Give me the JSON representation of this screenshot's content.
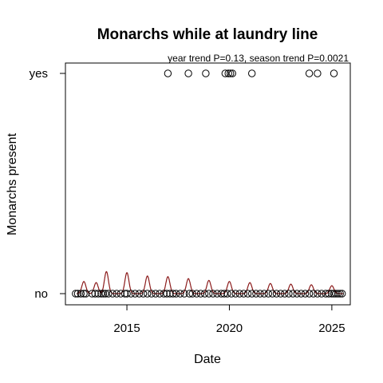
{
  "chart_data": {
    "type": "scatter",
    "title": "Monarchs while at laundry line",
    "subtitle": "year trend P=0.13, season trend P=0.0021",
    "xlabel": "Date",
    "ylabel": "Monarchs present",
    "xlim": [
      2012.0,
      2025.9
    ],
    "ylim": [
      0,
      1
    ],
    "x_ticks": [
      2015,
      2020,
      2025
    ],
    "y_ticks": [
      {
        "value": 0,
        "label": "no"
      },
      {
        "value": 1,
        "label": "yes"
      }
    ],
    "grid": false,
    "colors": {
      "points": "#000000",
      "trend": "#8b1a1a"
    },
    "series": [
      {
        "kind": "points",
        "points_yes": [
          2017.0,
          2018.0,
          2018.85,
          2019.8,
          2019.95,
          2020.05,
          2020.15,
          2021.1,
          2023.9,
          2024.3,
          2025.1
        ],
        "points_no": [
          2012.5,
          2012.6,
          2012.75,
          2012.9,
          2013.0,
          2013.3,
          2013.45,
          2013.6,
          2013.75,
          2013.85,
          2013.95,
          2014.1,
          2014.3,
          2014.5,
          2014.7,
          2014.9,
          2015.0,
          2015.2,
          2015.4,
          2015.6,
          2015.8,
          2016.0,
          2016.2,
          2016.4,
          2016.6,
          2016.8,
          2016.95,
          2017.1,
          2017.25,
          2017.4,
          2017.6,
          2017.8,
          2018.05,
          2018.2,
          2018.4,
          2018.6,
          2018.8,
          2019.0,
          2019.2,
          2019.4,
          2019.6,
          2019.75,
          2019.9,
          2020.1,
          2020.3,
          2020.5,
          2020.7,
          2020.9,
          2021.1,
          2021.3,
          2021.5,
          2021.7,
          2021.9,
          2022.1,
          2022.3,
          2022.5,
          2022.7,
          2022.9,
          2023.1,
          2023.3,
          2023.5,
          2023.7,
          2023.9,
          2024.1,
          2024.3,
          2024.5,
          2024.7,
          2024.85,
          2025.0,
          2025.1,
          2025.2,
          2025.3,
          2025.4,
          2025.5
        ]
      },
      {
        "kind": "line",
        "peaks": [
          {
            "x": 2012.9,
            "y": 0.055
          },
          {
            "x": 2013.5,
            "y": 0.05
          },
          {
            "x": 2014.0,
            "y": 0.1
          },
          {
            "x": 2015.0,
            "y": 0.095
          },
          {
            "x": 2016.0,
            "y": 0.08
          },
          {
            "x": 2017.0,
            "y": 0.077
          },
          {
            "x": 2018.0,
            "y": 0.068
          },
          {
            "x": 2019.0,
            "y": 0.06
          },
          {
            "x": 2020.0,
            "y": 0.055
          },
          {
            "x": 2021.0,
            "y": 0.05
          },
          {
            "x": 2022.0,
            "y": 0.046
          },
          {
            "x": 2023.0,
            "y": 0.043
          },
          {
            "x": 2024.0,
            "y": 0.04
          },
          {
            "x": 2025.0,
            "y": 0.036
          }
        ],
        "baseline": 0.0,
        "x_end": 2025.55
      }
    ]
  }
}
